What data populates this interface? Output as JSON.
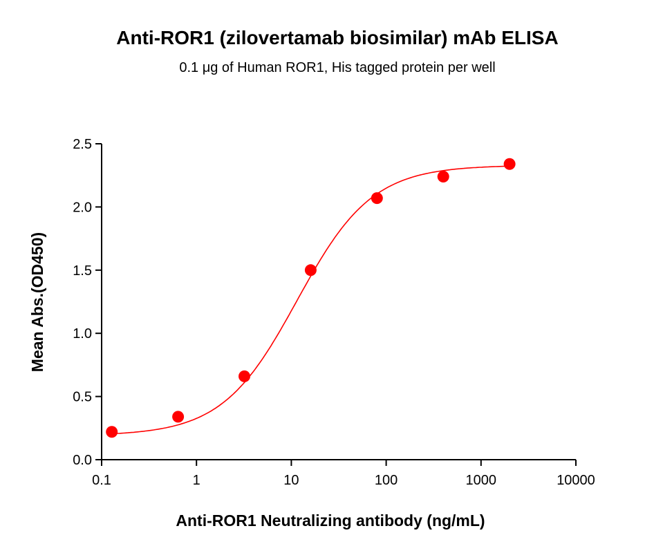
{
  "chart_data": {
    "type": "scatter",
    "title": "Anti-ROR1 (zilovertamab biosimilar) mAb ELISA",
    "subtitle": "0.1 μg of Human ROR1, His tagged protein per well",
    "xlabel": "Anti-ROR1 Neutralizing antibody (ng/mL)",
    "ylabel": "Mean Abs.(OD450)",
    "xscale": "log",
    "xlim": [
      0.1,
      10000
    ],
    "ylim": [
      0,
      2.5
    ],
    "xticks": [
      "0.1",
      "1",
      "10",
      "100",
      "1000",
      "10000"
    ],
    "yticks": [
      "0.0",
      "0.5",
      "1.0",
      "1.5",
      "2.0",
      "2.5"
    ],
    "grid": false,
    "color": "#ff0000",
    "fit": "sigmoidal curve",
    "series": [
      {
        "x": [
          0.128,
          0.64,
          3.2,
          16,
          80,
          400,
          2000
        ],
        "y": [
          0.22,
          0.34,
          0.66,
          1.5,
          2.07,
          2.24,
          2.34
        ]
      }
    ]
  }
}
